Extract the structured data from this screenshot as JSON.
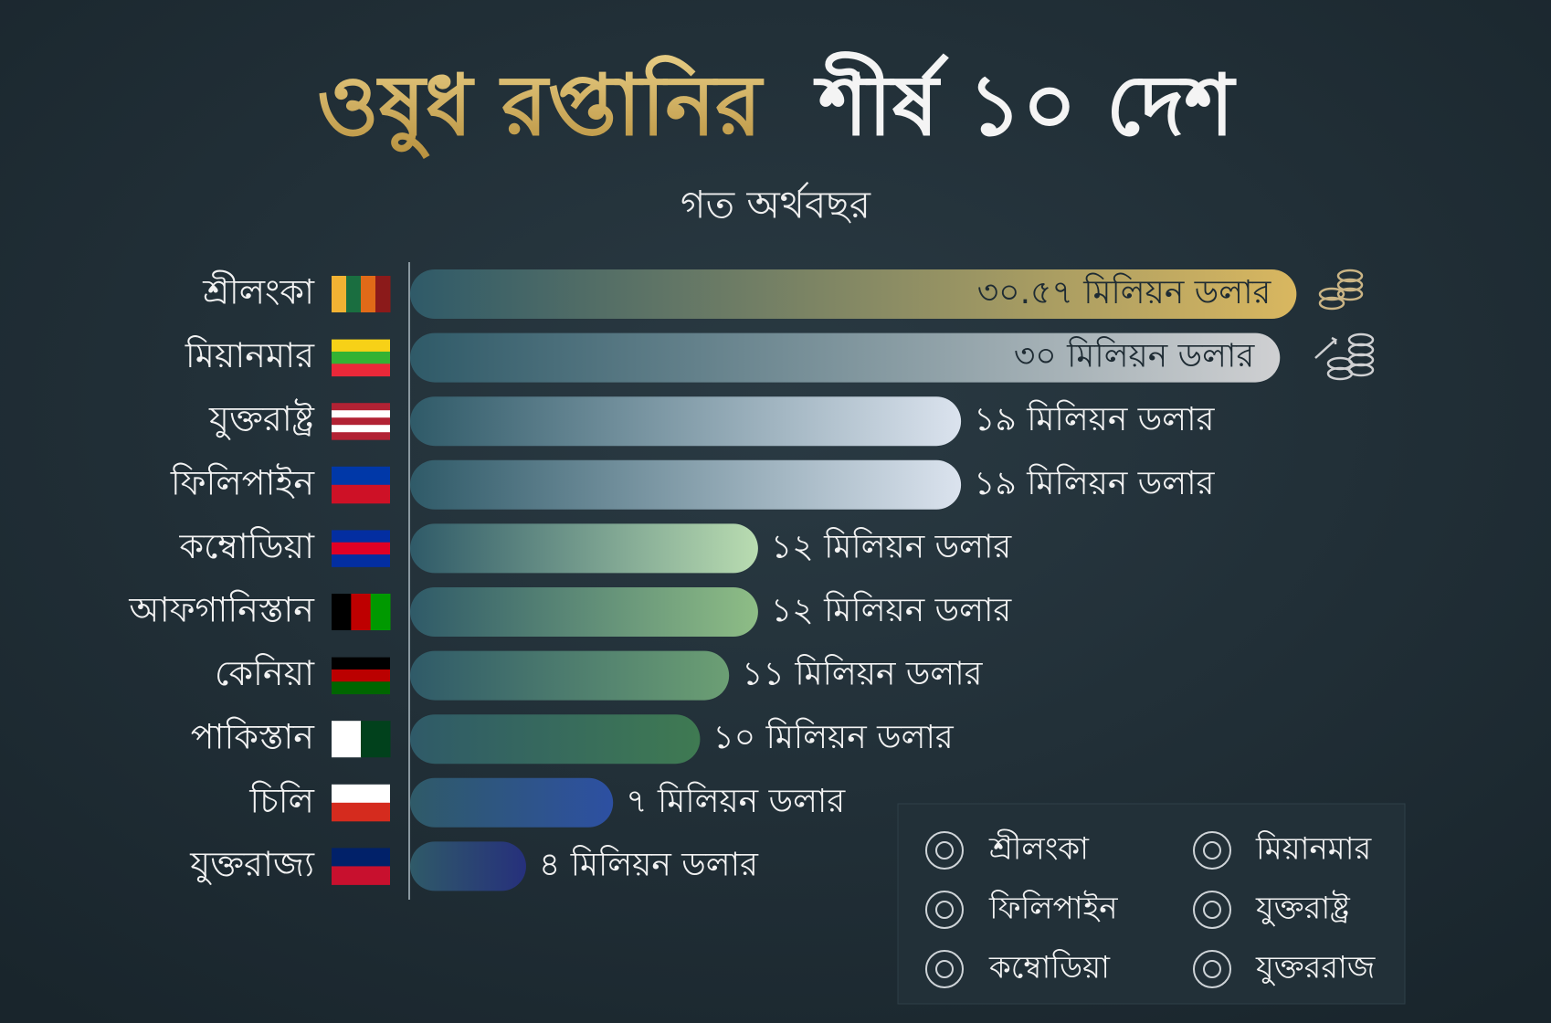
{
  "chart_data": {
    "type": "hbar",
    "title": [
      "ওষুধ রপ্তানির",
      "শীর্ষ ১০ দেশ"
    ],
    "subtitle": "গত অর্থবছর",
    "categories": [
      "শ্রীলংকা",
      "মিয়ানমার",
      "যুক্তরাষ্ট্র",
      "ফিলিপাইন",
      "কম্বোডিয়া",
      "আফগানিস্তান",
      "কেনিয়া",
      "পাকিস্তান",
      "চিলি",
      "যুক্তরাজ্য"
    ],
    "values": [
      30.57,
      30,
      19,
      19,
      12,
      12,
      11,
      10,
      7,
      4
    ],
    "value_labels": [
      "৩০.৫৭ মিলিয়ন ডলার",
      "৩০ মিলিয়ন ডলার",
      "১৯ মিলিয়ন ডলার",
      "১৯ মিলিয়ন ডলার",
      "১২ মিলিয়ন ডলার",
      "১২ মিলিয়ন ডলার",
      "১১ মিলিয়ন ডলার",
      "১০ মিলিয়ন ডলার",
      "৭ মিলিয়ন ডলার",
      "৪ মিলিয়ন ডলার"
    ],
    "colors": [
      "#d9b760",
      "#cfd0d2",
      "#dbe3ee",
      "#dbe3ee",
      "#b9dcb1",
      "#8ebd86",
      "#6c9f74",
      "#3f7a52",
      "#2d50a2",
      "#26307c"
    ],
    "xlim": [
      0,
      31
    ],
    "legend": [
      "শ্রীলংকা",
      "মিয়ানমার",
      "ফিলিপাইন",
      "যুক্তরাষ্ট্র",
      "কম্বোডিয়া",
      "যুক্তররাজ"
    ]
  }
}
